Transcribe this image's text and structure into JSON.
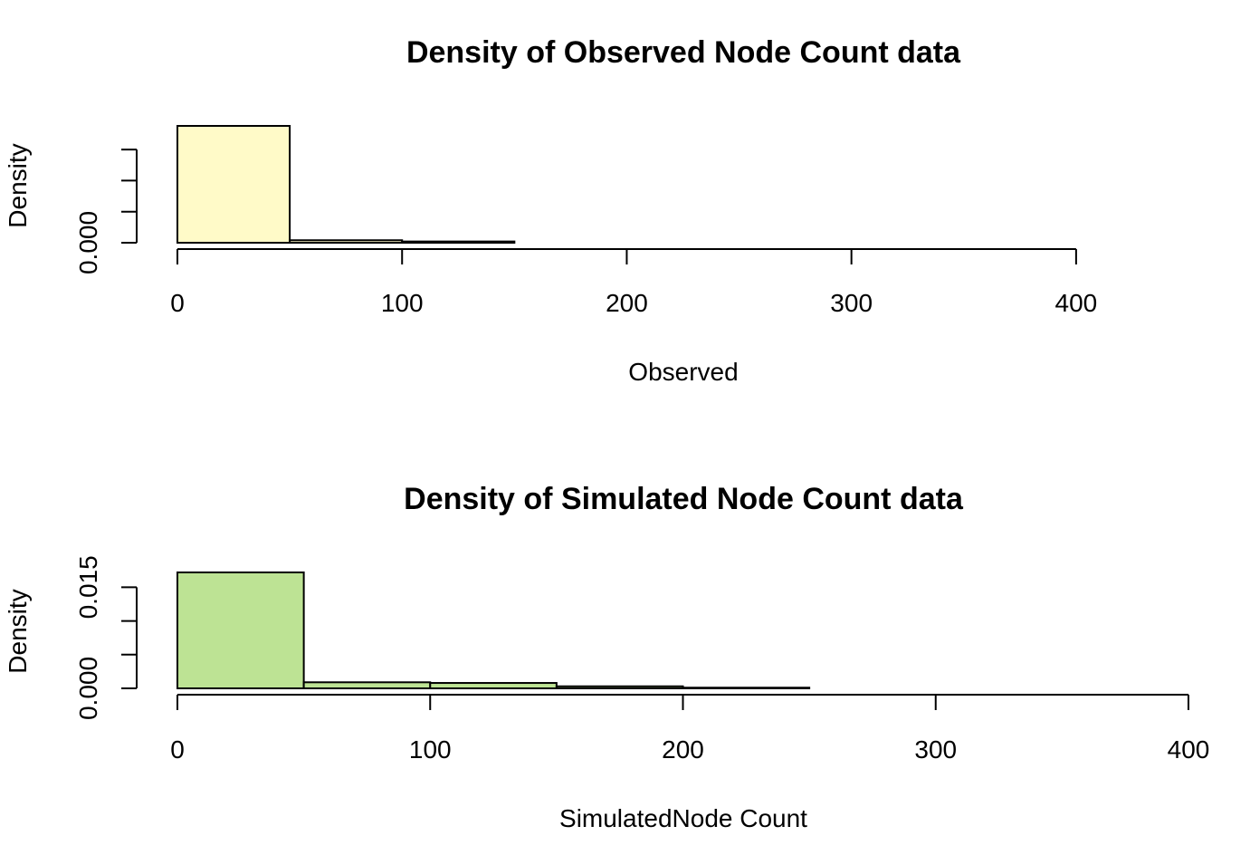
{
  "chart_data": [
    {
      "type": "bar",
      "title": "Density of Observed Node Count data",
      "xlabel": "Observed",
      "ylabel": "Density",
      "fill_color": "#FFFAC8",
      "bins": [
        {
          "x0": 0,
          "x1": 50,
          "density": 0.0188
        },
        {
          "x0": 50,
          "x1": 100,
          "density": 0.0004
        },
        {
          "x0": 100,
          "x1": 150,
          "density": 0.0002
        },
        {
          "x0": 150,
          "x1": 200,
          "density": 0
        },
        {
          "x0": 200,
          "x1": 250,
          "density": 0
        },
        {
          "x0": 250,
          "x1": 300,
          "density": 0
        },
        {
          "x0": 300,
          "x1": 350,
          "density": 0
        },
        {
          "x0": 350,
          "x1": 400,
          "density": 0
        },
        {
          "x0": 400,
          "x1": 450,
          "density": 0
        }
      ],
      "xlim": [
        0,
        450
      ],
      "ylim": [
        0,
        0.0188
      ],
      "x_ticks": [
        0,
        100,
        200,
        300,
        400
      ],
      "x_tick_labels": [
        "0",
        "100",
        "200",
        "300",
        "400"
      ],
      "y_ticks": [
        0,
        0.005,
        0.01,
        0.015
      ],
      "y_tick_labels": [
        "0.000",
        "",
        "",
        ""
      ],
      "grid": false
    },
    {
      "type": "bar",
      "title": "Density of Simulated Node Count data",
      "xlabel": "SimulatedNode Count",
      "ylabel": "Density",
      "fill_color": "#BDE394",
      "bins": [
        {
          "x0": 0,
          "x1": 50,
          "density": 0.0172
        },
        {
          "x0": 50,
          "x1": 100,
          "density": 0.0009
        },
        {
          "x0": 100,
          "x1": 150,
          "density": 0.0008
        },
        {
          "x0": 150,
          "x1": 200,
          "density": 0.0003
        },
        {
          "x0": 200,
          "x1": 250,
          "density": 0.0001
        },
        {
          "x0": 250,
          "x1": 300,
          "density": 0
        },
        {
          "x0": 300,
          "x1": 350,
          "density": 0
        },
        {
          "x0": 350,
          "x1": 400,
          "density": 0
        }
      ],
      "xlim": [
        0,
        400
      ],
      "ylim": [
        0,
        0.0172
      ],
      "x_ticks": [
        0,
        100,
        200,
        300,
        400
      ],
      "x_tick_labels": [
        "0",
        "100",
        "200",
        "300",
        "400"
      ],
      "y_ticks": [
        0,
        0.005,
        0.01,
        0.015
      ],
      "y_tick_labels": [
        "0.000",
        "",
        "",
        "0.015"
      ],
      "grid": false
    }
  ]
}
